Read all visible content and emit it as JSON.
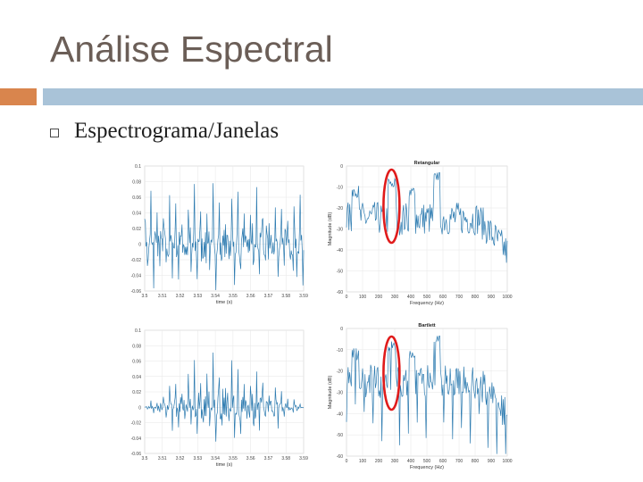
{
  "slide": {
    "title": "Análise Espectral",
    "bullet": "Espectrograma/Janelas"
  },
  "colors": {
    "title": "#6b5e57",
    "accent_orange": "#d9854d",
    "accent_blue": "#a9c3d8",
    "signal": "#2d7bb0",
    "highlight_ellipse": "#e01b1b"
  },
  "chart_data": [
    {
      "type": "line",
      "title": "",
      "xlabel": "time (s)",
      "ylabel": "",
      "x_ticks": [
        "3.5",
        "3.51",
        "3.52",
        "3.53",
        "3.54",
        "3.55",
        "3.56",
        "3.57",
        "3.58",
        "3.59"
      ],
      "y_ticks": [
        "0.1",
        "0.08",
        "0.06",
        "0.04",
        "0.02",
        "0",
        "-0.02",
        "-0.04",
        "-0.06"
      ],
      "ylim": [
        -0.06,
        0.1
      ],
      "grid": true
    },
    {
      "type": "line",
      "title": "Retangular",
      "xlabel": "Frequency (Hz)",
      "ylabel": "Magnitude (dB)",
      "x_ticks": [
        "0",
        "100",
        "200",
        "300",
        "400",
        "500",
        "600",
        "700",
        "800",
        "900",
        "1000"
      ],
      "y_ticks": [
        "0",
        "-10",
        "-20",
        "-30",
        "-40",
        "-50",
        "-60"
      ],
      "ylim": [
        -60,
        0
      ],
      "grid": true
    },
    {
      "type": "line",
      "title": "",
      "xlabel": "time (s)",
      "ylabel": "",
      "x_ticks": [
        "3.5",
        "3.51",
        "3.52",
        "3.53",
        "3.54",
        "3.55",
        "3.56",
        "3.57",
        "3.58",
        "3.59"
      ],
      "y_ticks": [
        "0.1",
        "0.08",
        "0.06",
        "0.04",
        "0.02",
        "0",
        "-0.02",
        "-0.04",
        "-0.06"
      ],
      "ylim": [
        -0.06,
        0.1
      ],
      "grid": true
    },
    {
      "type": "line",
      "title": "Bartlett",
      "xlabel": "Frequency (Hz)",
      "ylabel": "Magnitude (dB)",
      "x_ticks": [
        "0",
        "100",
        "200",
        "300",
        "400",
        "500",
        "600",
        "700",
        "800",
        "900",
        "1000"
      ],
      "y_ticks": [
        "0",
        "-10",
        "-20",
        "-30",
        "-40",
        "-50",
        "-60"
      ],
      "ylim": [
        -60,
        0
      ],
      "grid": true
    }
  ]
}
